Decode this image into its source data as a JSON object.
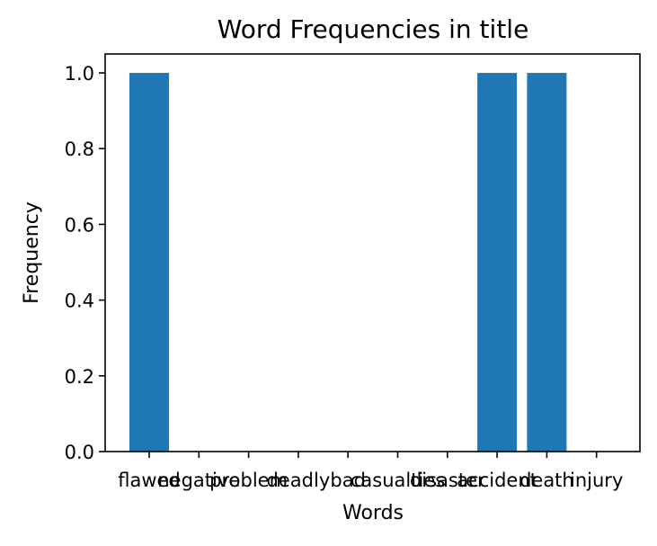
{
  "chart_data": {
    "type": "bar",
    "title": "Word Frequencies in title",
    "xlabel": "Words",
    "ylabel": "Frequency",
    "categories": [
      "flawed",
      "negative",
      "problem",
      "deadly",
      "bad",
      "casualties",
      "disaster",
      "accident",
      "death",
      "injury"
    ],
    "values": [
      1,
      0,
      0,
      0,
      0,
      0,
      0,
      1,
      1,
      0
    ],
    "ylim": [
      0,
      1.05
    ],
    "yticks": [
      0.0,
      0.2,
      0.4,
      0.6,
      0.8,
      1.0
    ],
    "ytick_labels": [
      "0.0",
      "0.2",
      "0.4",
      "0.6",
      "0.8",
      "1.0"
    ],
    "grid": false,
    "bar_color": "#1f77b4"
  }
}
